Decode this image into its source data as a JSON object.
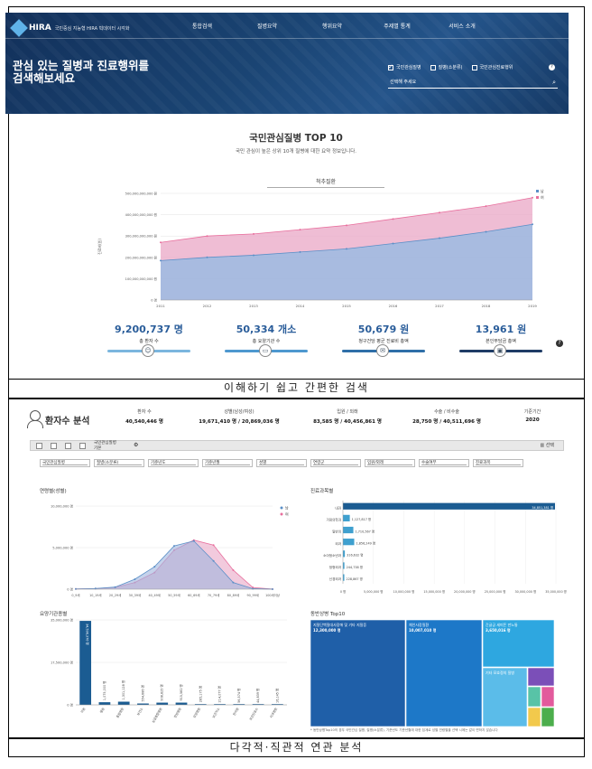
{
  "header": {
    "logo_title": "HIRA",
    "logo_sub": "국민중심 지능형 HIRA 빅데이터 시각화",
    "nav": [
      "통합검색",
      "질병요약",
      "행위요약",
      "주제별 통계",
      "서비스 소개"
    ],
    "hero_line1": "관심 있는 질병과 진료행위를",
    "hero_line2": "검색해보세요",
    "checks": [
      {
        "label": "국민관심질병",
        "checked": true
      },
      {
        "label": "질병(소분류)",
        "checked": false
      },
      {
        "label": "국민관심진료행위",
        "checked": false
      }
    ],
    "search_placeholder": "선택해 주세요",
    "help_icon": "?"
  },
  "top10": {
    "title": "국민관심질병 TOP 10",
    "subtitle": "국민 관심이 높은 상위 10개 질병에 대한 요약 정보입니다.",
    "selected_disease": "척추질환",
    "stats": [
      {
        "value": "9,200,737 명",
        "label": "총 환자 수",
        "color": "#7bb6de",
        "icon": "user-icon"
      },
      {
        "value": "50,334 개소",
        "label": "총 요양기관 수",
        "color": "#4e98cf",
        "icon": "hospital-icon"
      },
      {
        "value": "50,679 원",
        "label": "청구건당 평균 진료비 총액",
        "color": "#2f6fa8",
        "icon": "money-icon"
      },
      {
        "value": "13,961 원",
        "label": "본인부담금 총액",
        "color": "#1f3c66",
        "icon": "wallet-icon"
      }
    ]
  },
  "caption1": "이해하기 쉽고 간편한 검색",
  "caption2": "다각적·직관적 연관 분석",
  "analysis": {
    "title": "환자수 분석",
    "summary": [
      {
        "label": "환자 수",
        "value": "40,540,446 명"
      },
      {
        "label": "성별(남성/여성)",
        "value": "19,671,410 명 / 20,869,036 명"
      },
      {
        "label": "입원 / 외래",
        "value": "83,585 명 / 40,456,861 명"
      },
      {
        "label": "수술 / 비수술",
        "value": "28,750 명 / 40,511,696 명"
      },
      {
        "label": "기준기간",
        "value": "2020"
      }
    ],
    "toolbar_field": "국민관심질병",
    "toolbar_field_sub": "기본",
    "toolbar_right": "선택",
    "filters": [
      "국민관심질병",
      "질병(소분류)",
      "기준년도",
      "기준년월",
      "성별",
      "연령군",
      "입원/외래",
      "수술여부",
      "진료과목"
    ],
    "age_title": "연령별(성별)",
    "dept_title": "진료과목별",
    "inst_title": "요양기관종별",
    "co_title": "동반상병 Top10",
    "footnote": "* 동반상병Top10의 경우 국민관심 질병, 질병(소분류), 기준년도 기준년월에 대한 집계로 성별 연령별을 선택 시에는 값이 변하지 않습니다"
  },
  "colors": {
    "male": "#5a8fc7",
    "female": "#e86f9d",
    "male_fill": "#9fb4dd",
    "female_fill": "#e9a7c6",
    "bar_dark": "#1b5c92"
  },
  "chart_data": [
    {
      "type": "area",
      "x": [
        "2011",
        "2012",
        "2013",
        "2014",
        "2015",
        "2016",
        "2017",
        "2018",
        "2019"
      ],
      "ytick_labels": [
        "0 명",
        "100,000,000,000 원",
        "200,000,000,000 원",
        "300,000,000,000 원",
        "400,000,000,000 원",
        "500,000,000,000 원"
      ],
      "ylabel": "진료비(원)",
      "ylim": [
        0,
        500000000000
      ],
      "series": [
        {
          "name": "남",
          "values": [
            185000000000,
            200000000000,
            210000000000,
            225000000000,
            240000000000,
            265000000000,
            290000000000,
            320000000000,
            355000000000
          ]
        },
        {
          "name": "여",
          "values": [
            270000000000,
            300000000000,
            310000000000,
            330000000000,
            350000000000,
            380000000000,
            410000000000,
            440000000000,
            480000000000
          ]
        }
      ],
      "legend": "top-right"
    },
    {
      "type": "area",
      "title": "연령별(성별)",
      "categories": [
        "0_9세",
        "10_19세",
        "20_29세",
        "30_39세",
        "40_49세",
        "50_59세",
        "60_69세",
        "70_79세",
        "80_89세",
        "90_99세",
        "100세이상"
      ],
      "ytick_labels": [
        "0 명",
        "5,000,000 명",
        "10,000,000 명"
      ],
      "ylim": [
        0,
        10000000
      ],
      "series": [
        {
          "name": "남",
          "values": [
            30000,
            80000,
            250000,
            1200000,
            2700000,
            5200000,
            5800000,
            3400000,
            800000,
            60000,
            5000
          ]
        },
        {
          "name": "여",
          "values": [
            30000,
            70000,
            220000,
            800000,
            2000000,
            4700000,
            5900000,
            5300000,
            2300000,
            200000,
            10000
          ]
        }
      ],
      "legend": "top-right"
    },
    {
      "type": "bar",
      "title": "진료과목별",
      "categories": [
        "내과",
        "가정의학과",
        "일반의",
        "외과",
        "소아청소년과",
        "정형외과",
        "신경외과"
      ],
      "values": [
        34851381,
        1127817,
        1710567,
        1856249,
        316632,
        244738,
        228867
      ],
      "value_labels": [
        "34,851,381 명",
        "1,127,817 명",
        "1,710,567 명",
        "1,856,249 명",
        "316,632 명",
        "244,738 명",
        "228,867 명"
      ],
      "xtick_labels": [
        "0 명",
        "5,000,000 명",
        "10,000,000 명",
        "15,000,000 명",
        "20,000,000 명",
        "25,000,000 명",
        "30,000,000 명",
        "35,000,000 명"
      ],
      "xlim": [
        0,
        35000000
      ]
    },
    {
      "type": "bar",
      "title": "요양기관종별",
      "categories": [
        "의원",
        "병원",
        "종합병원",
        "보건소",
        "상급종합병원",
        "한방병원",
        "요양병원",
        "보건지소",
        "한의원",
        "보건진료소",
        "치과병원"
      ],
      "values": [
        34598376,
        1075000,
        1301128,
        554686,
        908825,
        915582,
        285175,
        214077,
        56574,
        44839,
        16145
      ],
      "value_labels": [
        "34,598,376 명",
        "1,075,000 명",
        "1,301,128 명",
        "554,686 명",
        "908,825 명",
        "915,582 명",
        "285,175 명",
        "214,077 명",
        "56,574 명",
        "44,839 명",
        "16,145 명"
      ],
      "ytick_labels": [
        "0 명",
        "17,500,000 명",
        "35,000,000 명"
      ],
      "ylim": [
        0,
        35000000
      ]
    },
    {
      "type": "heatmap",
      "title": "동반상병 Top10",
      "items": [
        {
          "label": "지질단백질대사장애 및 기타 지질증",
          "value": 12300000,
          "value_label": "12,300,000 명"
        },
        {
          "label": "체인사장질환",
          "value": 10007010,
          "value_label": "10,007,010 명"
        },
        {
          "label": "간글궁 세미돈 만노통",
          "value": 3650016,
          "value_label": "3,650,016 명"
        },
        {
          "label": "기타 모호정의 질병",
          "value": 1400000,
          "value_label": ""
        }
      ]
    }
  ]
}
